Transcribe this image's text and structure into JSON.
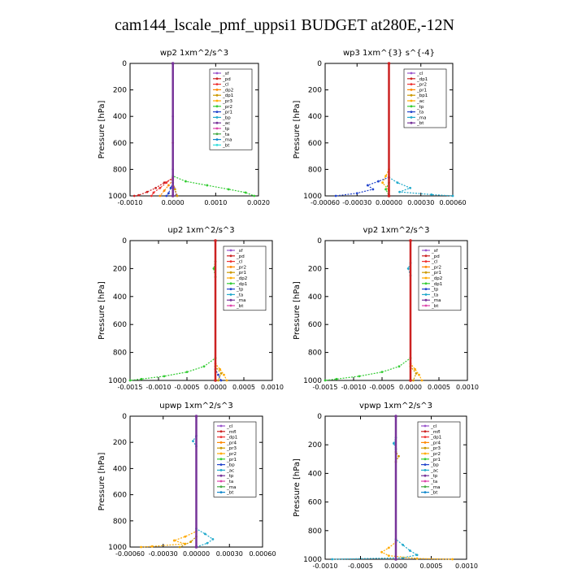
{
  "figure": {
    "title": "cam144_lscale_pmf_uppsi1  BUDGET at280E,-12N"
  },
  "chart_data": [
    {
      "type": "line",
      "title": "wp2   1xm^2/s^3",
      "ylabel": "Pressure [hPa]",
      "xlim": [
        -0.001,
        0.002
      ],
      "ylim": [
        1000,
        0
      ],
      "xticks": [
        -0.001,
        0.0,
        0.001,
        0.002
      ],
      "xtick_labels": [
        "-0.0010",
        "0.0000",
        "0.0010",
        "0.0020"
      ],
      "yticks": [
        0,
        200,
        400,
        600,
        800,
        1000
      ],
      "legend": [
        "_sf",
        "_pd",
        "_cl",
        "_dp2",
        "_dp1",
        "_pr3",
        "_pr2",
        "_pr1",
        "_bp",
        "_ac",
        "_tp",
        "_ta",
        "_ma",
        "_bt"
      ],
      "series": [
        {
          "color": "#9955cc",
          "points": [
            [
              0,
              0
            ],
            [
              0,
              400
            ],
            [
              0,
              800
            ],
            [
              0,
              880
            ],
            [
              3e-05,
              940
            ],
            [
              8e-05,
              990
            ],
            [
              0.0001,
              1000
            ]
          ]
        },
        {
          "color": "#cc2222",
          "points": [
            [
              0,
              0
            ],
            [
              0,
              600
            ],
            [
              0,
              870
            ],
            [
              -0.0002,
              900
            ],
            [
              -0.0004,
              940
            ],
            [
              -0.0006,
              970
            ],
            [
              -0.0008,
              995
            ],
            [
              -0.0009,
              1000
            ]
          ]
        },
        {
          "color": "#ee3333",
          "points": [
            [
              0,
              0
            ],
            [
              0,
              860
            ],
            [
              -0.00015,
              900
            ],
            [
              -0.0003,
              940
            ],
            [
              -0.00045,
              975
            ],
            [
              -0.0005,
              1000
            ]
          ]
        },
        {
          "color": "#ff8800",
          "points": [
            [
              0,
              0
            ],
            [
              0,
              880
            ],
            [
              -0.0001,
              920
            ],
            [
              -0.0002,
              960
            ],
            [
              -0.0003,
              1000
            ]
          ]
        },
        {
          "color": "#cc9900",
          "points": [
            [
              0,
              0
            ],
            [
              0,
              900
            ],
            [
              5e-05,
              950
            ],
            [
              0.0001,
              1000
            ]
          ]
        },
        {
          "color": "#33cc33",
          "points": [
            [
              0,
              0
            ],
            [
              0,
              850
            ],
            [
              0.0003,
              890
            ],
            [
              0.0008,
              920
            ],
            [
              0.0013,
              950
            ],
            [
              0.0017,
              975
            ],
            [
              0.0019,
              1000
            ]
          ]
        },
        {
          "color": "#2244cc",
          "points": [
            [
              0,
              0
            ],
            [
              0,
              900
            ],
            [
              -5e-05,
              940
            ],
            [
              -0.0001,
              980
            ],
            [
              -0.00015,
              1000
            ]
          ]
        },
        {
          "color": "#773399",
          "points": [
            [
              0,
              0
            ],
            [
              0,
              1000
            ]
          ]
        }
      ]
    },
    {
      "type": "line",
      "title": "wp3   1xm^{3} s^{-4}",
      "ylabel": "Pressure [hPa]",
      "xlim": [
        -0.0006,
        0.0006
      ],
      "ylim": [
        1000,
        0
      ],
      "xticks": [
        -0.0006,
        -0.0003,
        0.0,
        0.0003,
        0.0006
      ],
      "xtick_labels": [
        "-0.00060",
        "-0.00030",
        "0.00000",
        "0.00030",
        "0.00060"
      ],
      "yticks": [
        0,
        200,
        400,
        600,
        800,
        1000
      ],
      "legend": [
        "_cl",
        "_dp1",
        "_pr2",
        "_pr1",
        "_bp1",
        "_ac",
        "_tp",
        "_ta",
        "_ma",
        "_bt"
      ],
      "series": [
        {
          "color": "#ffaa00",
          "points": [
            [
              0,
              0
            ],
            [
              0,
              800
            ],
            [
              -3e-05,
              850
            ],
            [
              -6e-05,
              900
            ],
            [
              0,
              960
            ],
            [
              0,
              1000
            ]
          ]
        },
        {
          "color": "#2244cc",
          "points": [
            [
              0,
              0
            ],
            [
              0,
              860
            ],
            [
              -0.0001,
              890
            ],
            [
              -0.0002,
              920
            ],
            [
              -0.00015,
              950
            ],
            [
              -0.0003,
              980
            ],
            [
              -0.0005,
              1000
            ]
          ]
        },
        {
          "color": "#22aacc",
          "points": [
            [
              0,
              0
            ],
            [
              0,
              860
            ],
            [
              8e-05,
              900
            ],
            [
              0.0002,
              940
            ],
            [
              0.0001,
              970
            ],
            [
              0.0004,
              990
            ],
            [
              0.0006,
              1000
            ]
          ]
        },
        {
          "color": "#33cc33",
          "points": [
            [
              0,
              0
            ],
            [
              0,
              900
            ],
            [
              -3e-05,
              950
            ],
            [
              0,
              1000
            ]
          ]
        },
        {
          "color": "#cc2222",
          "points": [
            [
              0,
              0
            ],
            [
              0,
              1000
            ]
          ]
        }
      ]
    },
    {
      "type": "line",
      "title": "up2   1xm^2/s^3",
      "ylabel": "Pressure [hPa]",
      "xlim": [
        -0.0015,
        0.001
      ],
      "ylim": [
        1000,
        0
      ],
      "xticks": [
        -0.0015,
        -0.001,
        -0.0005,
        0.0,
        0.0005,
        0.001
      ],
      "xtick_labels": [
        "-0.0015",
        "-0.0010",
        "-0.0005",
        "0.0000",
        "0.0005",
        "0.0010"
      ],
      "yticks": [
        0,
        200,
        400,
        600,
        800,
        1000
      ],
      "legend": [
        "_sf",
        "_pd",
        "_cl",
        "_pr2",
        "_pr1",
        "_dp2",
        "_dp1",
        "_tp",
        "_ta",
        "_ma",
        "_bt"
      ],
      "series": [
        {
          "color": "#33cc33",
          "points": [
            [
              0,
              0
            ],
            [
              0,
              150
            ],
            [
              -3e-05,
              200
            ],
            [
              0,
              260
            ],
            [
              0,
              840
            ],
            [
              -0.0002,
              900
            ],
            [
              -0.0005,
              940
            ],
            [
              -0.0009,
              970
            ],
            [
              -0.0013,
              990
            ],
            [
              -0.0015,
              1000
            ]
          ]
        },
        {
          "color": "#ffaa00",
          "points": [
            [
              0,
              0
            ],
            [
              0,
              880
            ],
            [
              8e-05,
              920
            ],
            [
              0.00015,
              960
            ],
            [
              0.0002,
              1000
            ]
          ]
        },
        {
          "color": "#cc9900",
          "points": [
            [
              0,
              0
            ],
            [
              0,
              900
            ],
            [
              0.0001,
              950
            ],
            [
              5e-05,
              1000
            ]
          ]
        },
        {
          "color": "#2244cc",
          "points": [
            [
              0,
              0
            ],
            [
              0,
              920
            ],
            [
              5e-05,
              960
            ],
            [
              0.0001,
              1000
            ]
          ]
        },
        {
          "color": "#cc2222",
          "points": [
            [
              0,
              0
            ],
            [
              0,
              1000
            ]
          ]
        }
      ]
    },
    {
      "type": "line",
      "title": "vp2   1xm^2/s^3",
      "ylabel": "Pressure [hPa]",
      "xlim": [
        -0.0015,
        0.001
      ],
      "ylim": [
        1000,
        0
      ],
      "xticks": [
        -0.0015,
        -0.001,
        -0.0005,
        0.0,
        0.0005,
        0.001
      ],
      "xtick_labels": [
        "-0.0015",
        "-0.0010",
        "-0.0005",
        "0.0000",
        "0.0005",
        "0.0010"
      ],
      "yticks": [
        0,
        200,
        400,
        600,
        800,
        1000
      ],
      "legend": [
        "_sf",
        "_pd",
        "_cl",
        "_pr2",
        "_pr1",
        "_dp2",
        "_dp1",
        "_tp",
        "_ta",
        "_ma",
        "_bt"
      ],
      "series": [
        {
          "color": "#33cc33",
          "points": [
            [
              0,
              0
            ],
            [
              0,
              840
            ],
            [
              -0.0002,
              900
            ],
            [
              -0.0005,
              940
            ],
            [
              -0.0009,
              970
            ],
            [
              -0.0013,
              990
            ],
            [
              -0.0015,
              1000
            ]
          ]
        },
        {
          "color": "#22aacc",
          "points": [
            [
              0,
              0
            ],
            [
              0,
              160
            ],
            [
              -4e-05,
              200
            ],
            [
              0,
              250
            ],
            [
              0,
              1000
            ]
          ]
        },
        {
          "color": "#ffaa00",
          "points": [
            [
              0,
              0
            ],
            [
              0,
              880
            ],
            [
              8e-05,
              920
            ],
            [
              0.00015,
              960
            ],
            [
              0.0002,
              1000
            ]
          ]
        },
        {
          "color": "#cc9900",
          "points": [
            [
              0,
              0
            ],
            [
              0,
              900
            ],
            [
              0.0001,
              950
            ],
            [
              5e-05,
              1000
            ]
          ]
        },
        {
          "color": "#cc2222",
          "points": [
            [
              0,
              0
            ],
            [
              0,
              1000
            ]
          ]
        }
      ]
    },
    {
      "type": "line",
      "title": "upwp   1xm^2/s^3",
      "ylabel": "Pressure [hPa]",
      "xlim": [
        -0.0006,
        0.0006
      ],
      "ylim": [
        1000,
        0
      ],
      "xticks": [
        -0.0006,
        -0.0003,
        0.0,
        0.0003,
        0.0006
      ],
      "xtick_labels": [
        "-0.00060",
        "-0.00030",
        "0.00000",
        "0.00030",
        "0.00060"
      ],
      "yticks": [
        0,
        200,
        400,
        600,
        800,
        1000
      ],
      "legend": [
        "_cl",
        "_mfl",
        "_dp1",
        "_pr4",
        "_pr3",
        "_pr2",
        "_pr1",
        "_bp",
        "_ac",
        "_tp",
        "_ta",
        "_ma",
        "_bt"
      ],
      "series": [
        {
          "color": "#22aacc",
          "points": [
            [
              0,
              0
            ],
            [
              0,
              150
            ],
            [
              -3e-05,
              190
            ],
            [
              0,
              230
            ],
            [
              0,
              860
            ],
            [
              8e-05,
              900
            ],
            [
              0.00015,
              940
            ],
            [
              0.0001,
              970
            ],
            [
              0,
              1000
            ]
          ]
        },
        {
          "color": "#ffaa00",
          "points": [
            [
              0,
              0
            ],
            [
              0,
              880
            ],
            [
              -0.0001,
              920
            ],
            [
              -0.0002,
              950
            ],
            [
              -0.0001,
              975
            ],
            [
              -0.0004,
              995
            ],
            [
              -0.0005,
              1000
            ]
          ]
        },
        {
          "color": "#cc9900",
          "points": [
            [
              0,
              0
            ],
            [
              0,
              920
            ],
            [
              -5e-05,
              960
            ],
            [
              -0.00015,
              1000
            ]
          ]
        },
        {
          "color": "#773399",
          "points": [
            [
              0,
              0
            ],
            [
              0,
              1000
            ]
          ]
        }
      ]
    },
    {
      "type": "line",
      "title": "vpwp   1xm^2/s^3",
      "ylabel": "Pressure [hPa]",
      "xlim": [
        -0.001,
        0.001
      ],
      "ylim": [
        1000,
        0
      ],
      "xticks": [
        -0.001,
        -0.0005,
        0.0,
        0.0005,
        0.001
      ],
      "xtick_labels": [
        "-0.0010",
        "-0.0005",
        "0.0000",
        "0.0005",
        "0.0010"
      ],
      "yticks": [
        0,
        200,
        400,
        600,
        800,
        1000
      ],
      "legend": [
        "_cl",
        "_mfl",
        "_dp1",
        "_pr4",
        "_pr3",
        "_pr2",
        "_pr1",
        "_bp",
        "_ac",
        "_tp",
        "_ta",
        "_ma",
        "_bt"
      ],
      "series": [
        {
          "color": "#22aacc",
          "points": [
            [
              0,
              0
            ],
            [
              0,
              150
            ],
            [
              -3e-05,
              190
            ],
            [
              0,
              230
            ],
            [
              0,
              860
            ],
            [
              0.0001,
              900
            ],
            [
              0.0002,
              940
            ],
            [
              0.0003,
              970
            ],
            [
              0.0001,
              990
            ],
            [
              -0.0009,
              1000
            ]
          ]
        },
        {
          "color": "#ffaa00",
          "points": [
            [
              0,
              0
            ],
            [
              0,
              880
            ],
            [
              -0.0001,
              920
            ],
            [
              -0.0002,
              950
            ],
            [
              -0.0001,
              975
            ],
            [
              0.0003,
              995
            ],
            [
              0.0008,
              1000
            ]
          ]
        },
        {
          "color": "#cc9900",
          "points": [
            [
              0,
              0
            ],
            [
              0,
              250
            ],
            [
              4e-05,
              280
            ],
            [
              0,
              320
            ],
            [
              0,
              1000
            ]
          ]
        },
        {
          "color": "#773399",
          "points": [
            [
              0,
              0
            ],
            [
              0,
              1000
            ]
          ]
        }
      ]
    }
  ],
  "legend_colors": [
    "#9955cc",
    "#cc2222",
    "#ee3333",
    "#ff8800",
    "#cc9900",
    "#ffaa00",
    "#33cc33",
    "#2244cc",
    "#22aacc",
    "#773399",
    "#dd44aa",
    "#44aa44",
    "#1188cc",
    "#33dddd"
  ]
}
